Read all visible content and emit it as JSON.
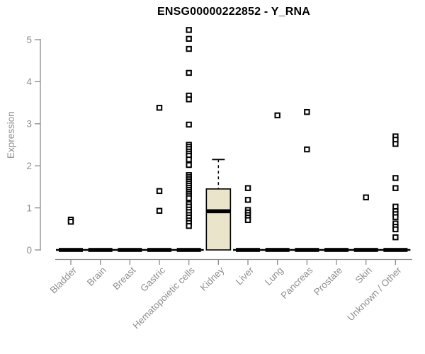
{
  "chart_data": {
    "type": "boxplot",
    "title": "ENSG00000222852 - Y_RNA",
    "xlabel": "",
    "ylabel": "Expression",
    "ylim": [
      0,
      5.35
    ],
    "y_ticks": [
      0,
      1,
      2,
      3,
      4,
      5
    ],
    "grid": false,
    "legend": "none",
    "categories": [
      "Bladder",
      "Brain",
      "Breast",
      "Gastric",
      "Hematopoietic cells",
      "Kidney",
      "Liver",
      "Lung",
      "Pancreas",
      "Prostate",
      "Skin",
      "Unknown / Other"
    ],
    "boxes": [
      {
        "category": "Bladder",
        "whisker_low": 0,
        "q1": 0,
        "median": 0,
        "q3": 0,
        "whisker_high": 0
      },
      {
        "category": "Brain",
        "whisker_low": 0,
        "q1": 0,
        "median": 0,
        "q3": 0,
        "whisker_high": 0
      },
      {
        "category": "Breast",
        "whisker_low": 0,
        "q1": 0,
        "median": 0,
        "q3": 0,
        "whisker_high": 0
      },
      {
        "category": "Gastric",
        "whisker_low": 0,
        "q1": 0,
        "median": 0,
        "q3": 0,
        "whisker_high": 0
      },
      {
        "category": "Hematopoietic cells",
        "whisker_low": 0,
        "q1": 0,
        "median": 0,
        "q3": 0,
        "whisker_high": 0
      },
      {
        "category": "Kidney",
        "whisker_low": 0,
        "q1": 0,
        "median": 0.92,
        "q3": 1.45,
        "whisker_high": 2.15
      },
      {
        "category": "Liver",
        "whisker_low": 0,
        "q1": 0,
        "median": 0,
        "q3": 0,
        "whisker_high": 0
      },
      {
        "category": "Lung",
        "whisker_low": 0,
        "q1": 0,
        "median": 0,
        "q3": 0,
        "whisker_high": 0
      },
      {
        "category": "Pancreas",
        "whisker_low": 0,
        "q1": 0,
        "median": 0,
        "q3": 0,
        "whisker_high": 0
      },
      {
        "category": "Prostate",
        "whisker_low": 0,
        "q1": 0,
        "median": 0,
        "q3": 0,
        "whisker_high": 0
      },
      {
        "category": "Skin",
        "whisker_low": 0,
        "q1": 0,
        "median": 0,
        "q3": 0,
        "whisker_high": 0
      },
      {
        "category": "Unknown / Other",
        "whisker_low": 0,
        "q1": 0,
        "median": 0,
        "q3": 0,
        "whisker_high": 0
      }
    ],
    "outliers": [
      [
        0.72,
        0.67
      ],
      [],
      [],
      [
        3.38,
        1.4,
        0.93
      ],
      [
        5.23,
        5.02,
        4.78,
        4.21,
        3.67,
        3.58,
        2.98,
        2.5,
        2.45,
        2.4,
        2.34,
        2.29,
        2.24,
        2.15,
        2.02,
        1.78,
        1.73,
        1.68,
        1.63,
        1.58,
        1.53,
        1.48,
        1.43,
        1.38,
        1.33,
        1.28,
        1.23,
        1.09,
        1.03,
        0.96,
        0.9,
        0.83,
        0.77,
        0.7,
        0.64,
        0.57
      ],
      [],
      [
        1.47,
        1.19,
        0.95,
        0.89,
        0.83,
        0.77,
        0.71
      ],
      [
        3.2
      ],
      [
        3.28,
        2.39
      ],
      [],
      [
        1.25
      ],
      [
        2.7,
        2.62,
        2.52,
        1.71,
        1.47,
        1.03,
        0.92,
        0.85,
        0.78,
        0.63,
        0.55,
        0.49,
        0.3
      ]
    ],
    "colors": {
      "box_fill": "#eae4cb",
      "box_stroke": "#000000",
      "median": "#000000",
      "point_stroke": "#000000",
      "point_fill": "#ffffff",
      "axis_line": "#8c8c8c",
      "axis_text": "#8f8f8f",
      "title_text": "#000000",
      "background": "#ffffff"
    }
  }
}
